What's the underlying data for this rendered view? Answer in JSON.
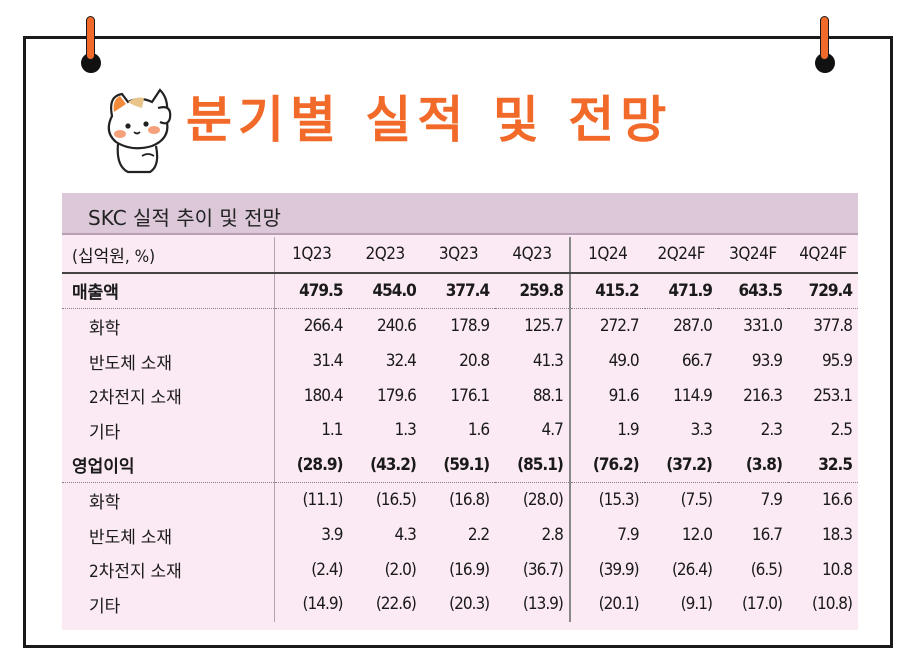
{
  "page_title": "분기별 실적 및 전망",
  "table": {
    "caption": "SKC 실적 추이 및 전망",
    "unit_label": "(십억원, %)",
    "columns": [
      "1Q23",
      "2Q23",
      "3Q23",
      "4Q23",
      "1Q24",
      "2Q24F",
      "3Q24F",
      "4Q24F"
    ],
    "rows": [
      {
        "label": "매출액",
        "bold": true,
        "values": [
          "479.5",
          "454.0",
          "377.4",
          "259.8",
          "415.2",
          "471.9",
          "643.5",
          "729.4"
        ]
      },
      {
        "label": "화학",
        "bold": false,
        "values": [
          "266.4",
          "240.6",
          "178.9",
          "125.7",
          "272.7",
          "287.0",
          "331.0",
          "377.8"
        ]
      },
      {
        "label": "반도체 소재",
        "bold": false,
        "values": [
          "31.4",
          "32.4",
          "20.8",
          "41.3",
          "49.0",
          "66.7",
          "93.9",
          "95.9"
        ]
      },
      {
        "label": "2차전지 소재",
        "bold": false,
        "values": [
          "180.4",
          "179.6",
          "176.1",
          "88.1",
          "91.6",
          "114.9",
          "216.3",
          "253.1"
        ]
      },
      {
        "label": "기타",
        "bold": false,
        "values": [
          "1.1",
          "1.3",
          "1.6",
          "4.7",
          "1.9",
          "3.3",
          "2.3",
          "2.5"
        ]
      },
      {
        "label": "영업이익",
        "bold": true,
        "values": [
          "(28.9)",
          "(43.2)",
          "(59.1)",
          "(85.1)",
          "(76.2)",
          "(37.2)",
          "(3.8)",
          "32.5"
        ]
      },
      {
        "label": "화학",
        "bold": false,
        "values": [
          "(11.1)",
          "(16.5)",
          "(16.8)",
          "(28.0)",
          "(15.3)",
          "(7.5)",
          "7.9",
          "16.6"
        ]
      },
      {
        "label": "반도체 소재",
        "bold": false,
        "values": [
          "3.9",
          "4.3",
          "2.2",
          "2.8",
          "7.9",
          "12.0",
          "16.7",
          "18.3"
        ]
      },
      {
        "label": "2차전지 소재",
        "bold": false,
        "values": [
          "(2.4)",
          "(2.0)",
          "(16.9)",
          "(36.7)",
          "(39.9)",
          "(26.4)",
          "(6.5)",
          "10.8"
        ]
      },
      {
        "label": "기타",
        "bold": false,
        "values": [
          "(14.9)",
          "(22.6)",
          "(20.3)",
          "(13.9)",
          "(20.1)",
          "(9.1)",
          "(17.0)",
          "(10.8)"
        ]
      }
    ]
  },
  "colors": {
    "accent": "#f26a2a",
    "panel_bg": "#fbe9f4",
    "header_bg": "#dcc8d8"
  },
  "icons": [
    "cat-mascot-icon",
    "binder-ring-icon"
  ]
}
